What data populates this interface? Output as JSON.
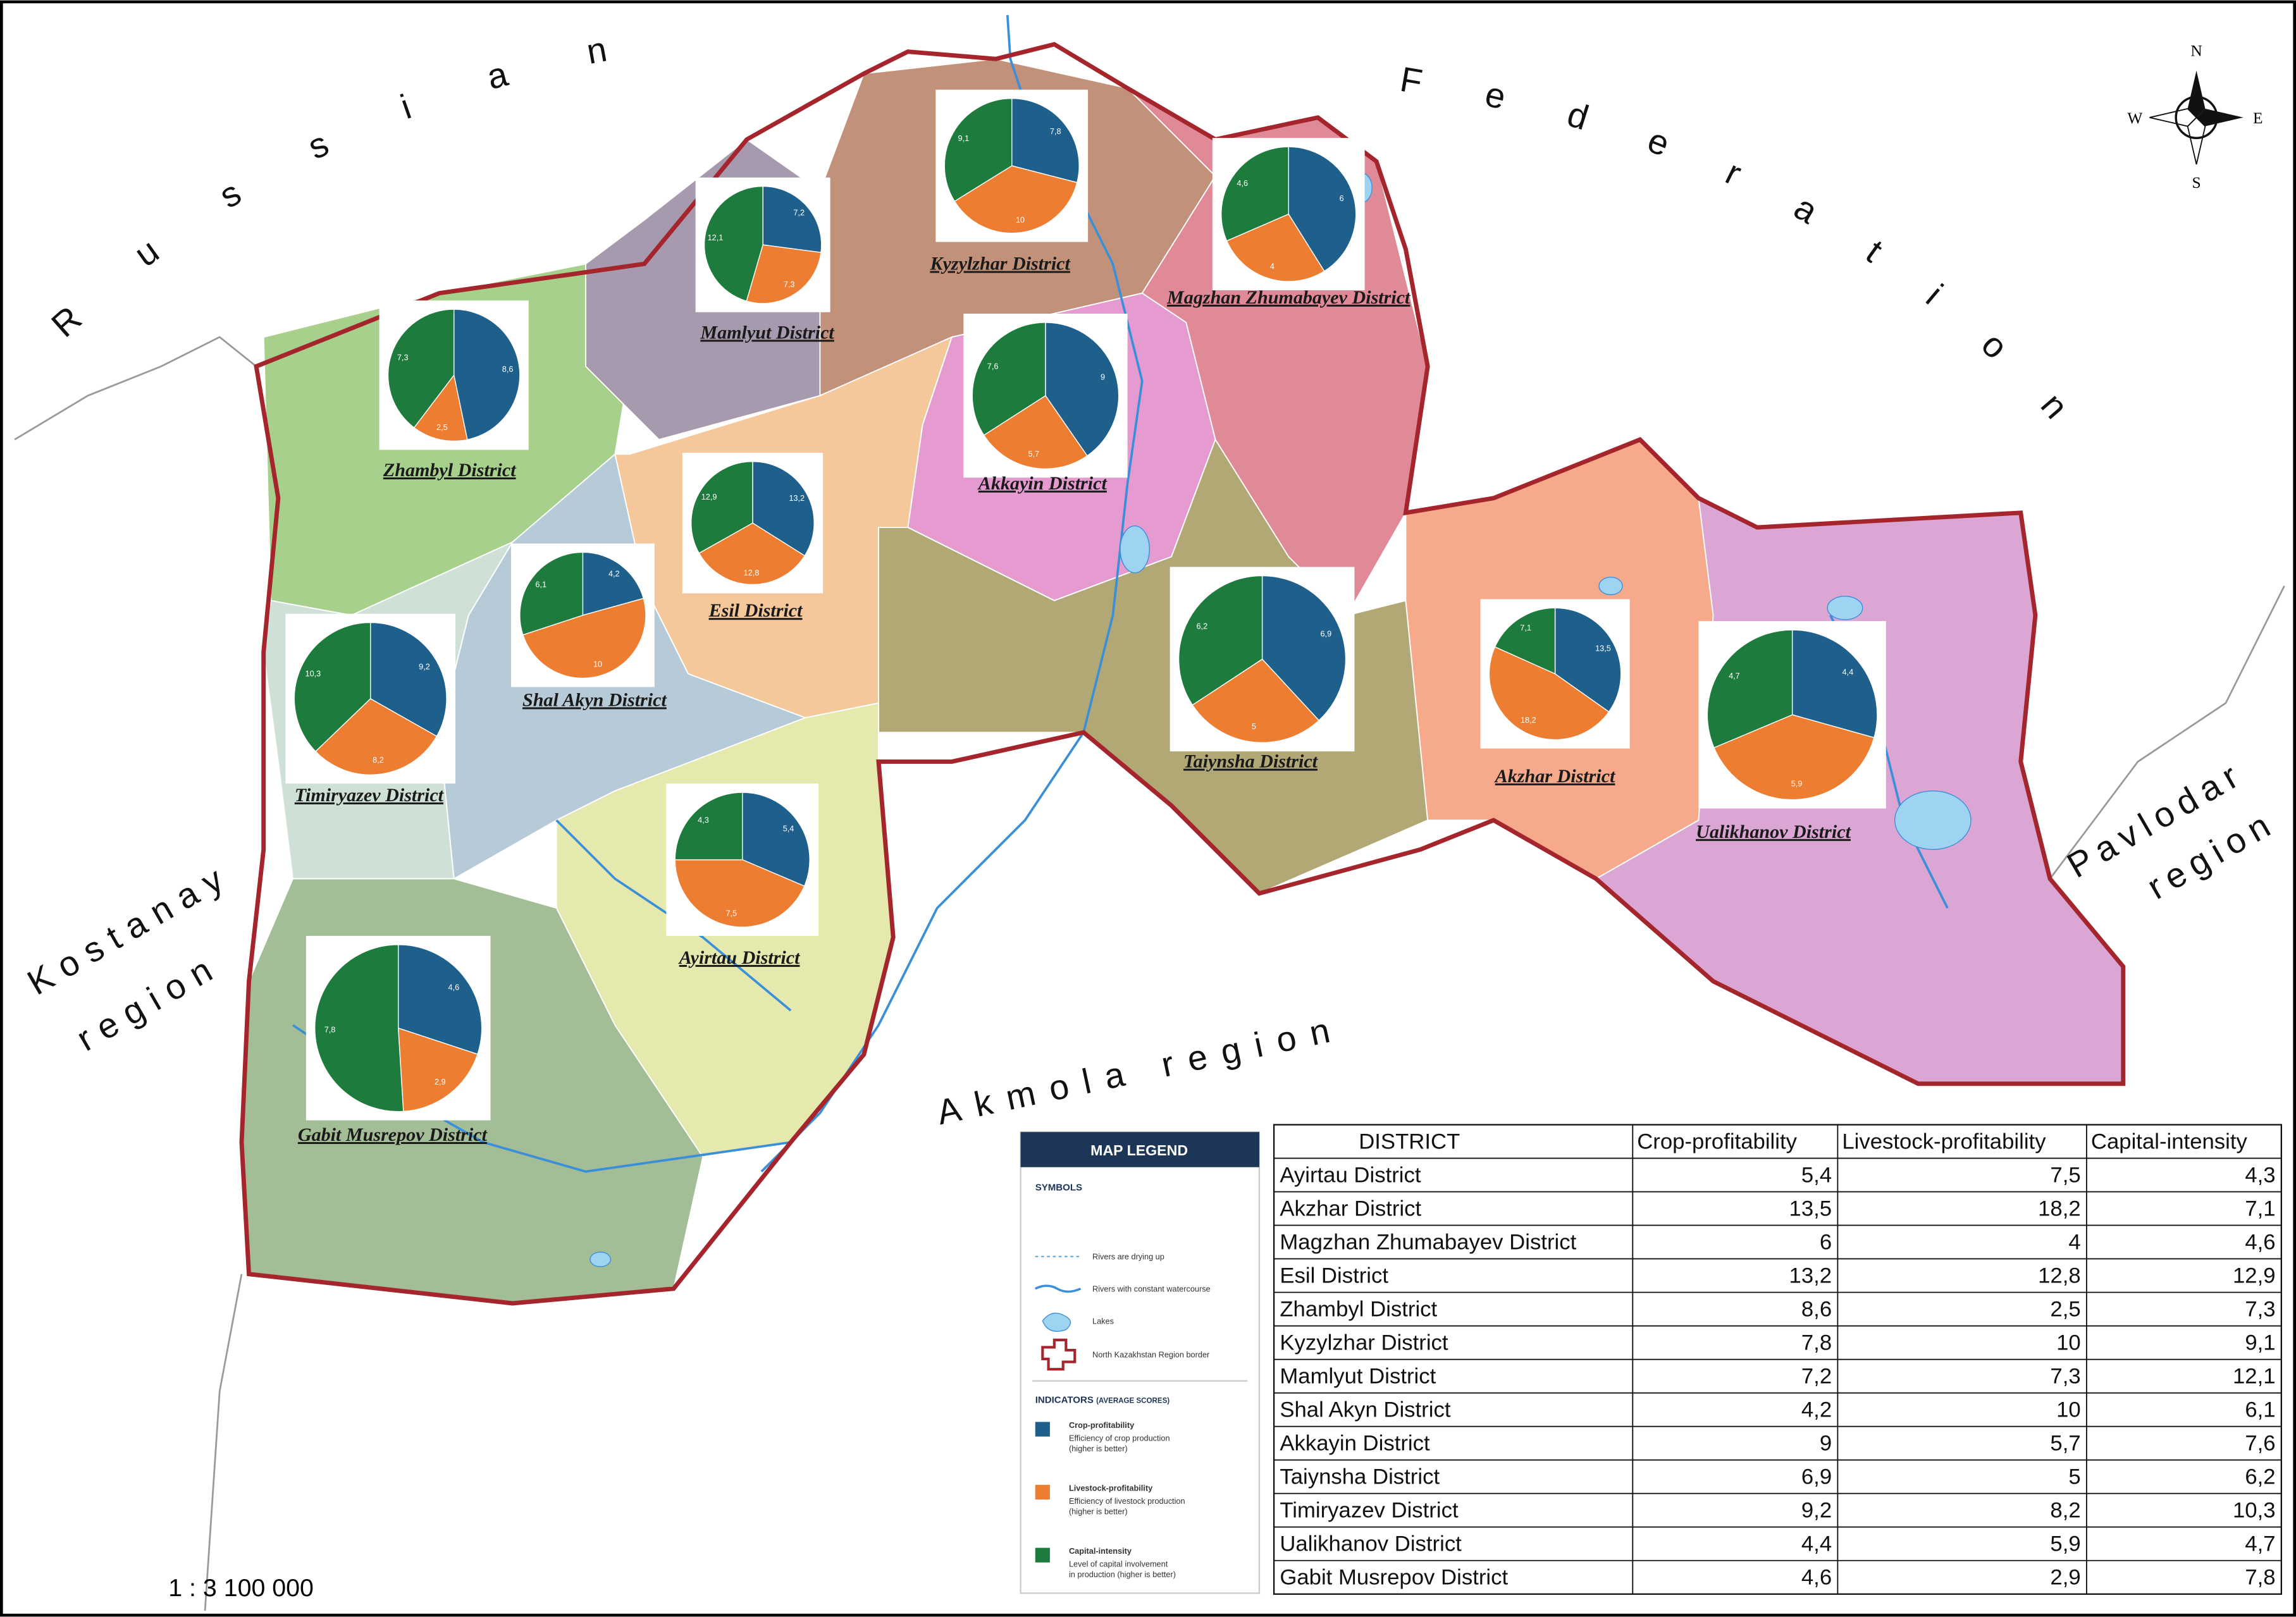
{
  "neighbors": {
    "russian": "Russian",
    "federation": "Federation",
    "kostanay": [
      "Kostanay",
      "region"
    ],
    "akmola": "Akmola region",
    "pavlodar": [
      "Pavlodar",
      "region"
    ]
  },
  "compass": {
    "n": "N",
    "s": "S",
    "w": "W",
    "e": "E"
  },
  "colors": [
    "#1f5f8b",
    "#ed7d31",
    "#1e7b3e"
  ],
  "pies": [
    {
      "name": "Kyzylzhar District",
      "values": [
        7.8,
        10,
        9.1
      ],
      "value_labels": [
        "7,8",
        "10",
        "9,1"
      ]
    },
    {
      "name": "Mamlyut District",
      "values": [
        7.2,
        7.3,
        12.1
      ],
      "value_labels": [
        "7,2",
        "7,3",
        "12,1"
      ]
    },
    {
      "name": "Magzhan Zhumabayev District",
      "values": [
        6,
        4,
        4.6
      ],
      "value_labels": [
        "6",
        "4",
        "4,6"
      ]
    },
    {
      "name": "Zhambyl District",
      "values": [
        8.6,
        2.5,
        7.3
      ],
      "value_labels": [
        "8,6",
        "2,5",
        "7,3"
      ]
    },
    {
      "name": "Akkayin District",
      "values": [
        9,
        5.7,
        7.6
      ],
      "value_labels": [
        "9",
        "5,7",
        "7,6"
      ]
    },
    {
      "name": "Esil District",
      "values": [
        13.2,
        12.8,
        12.9
      ],
      "value_labels": [
        "13,2",
        "12,8",
        "12,9"
      ]
    },
    {
      "name": "Shal Akyn District",
      "values": [
        4.2,
        10,
        6.1
      ],
      "value_labels": [
        "4,2",
        "10",
        "6,1"
      ]
    },
    {
      "name": "Taiynsha District",
      "values": [
        6.9,
        5,
        6.2
      ],
      "value_labels": [
        "6,9",
        "5",
        "6,2"
      ]
    },
    {
      "name": "Akzhar District",
      "values": [
        13.5,
        18.2,
        7.1
      ],
      "value_labels": [
        "13,5",
        "18,2",
        "7,1"
      ]
    },
    {
      "name": "Timiryazev District",
      "values": [
        9.2,
        8.2,
        10.3
      ],
      "value_labels": [
        "9,2",
        "8,2",
        "10,3"
      ]
    },
    {
      "name": "Ualikhanov District",
      "values": [
        4.4,
        5.9,
        4.7
      ],
      "value_labels": [
        "4,4",
        "5,9",
        "4,7"
      ]
    },
    {
      "name": "Ayirtau District",
      "values": [
        5.4,
        7.5,
        4.3
      ],
      "value_labels": [
        "5,4",
        "7,5",
        "4,3"
      ]
    },
    {
      "name": "Gabit Musrepov District",
      "values": [
        4.6,
        2.9,
        7.8
      ],
      "value_labels": [
        "4,6",
        "2,9",
        "7,8"
      ]
    }
  ],
  "legend": {
    "title": "MAP LEGEND",
    "symbols_title": "SYMBOLS",
    "symbols": [
      "Rivers are drying up",
      "Rivers with constant watercourse",
      "Lakes",
      "North Kazakhstan Region border"
    ],
    "indicators_title": "INDICATORS",
    "indicators_note": "(AVERAGE SCORES)",
    "indicators": [
      {
        "title": "Crop-profitability",
        "desc": [
          "Efficiency of crop production",
          "(higher is better)"
        ]
      },
      {
        "title": "Livestock-profitability",
        "desc": [
          "Efficiency of livestock production",
          "(higher is better)"
        ]
      },
      {
        "title": "Capital-intensity",
        "desc": [
          "Level of capital involvement",
          "in production (higher is better)"
        ]
      }
    ]
  },
  "table": {
    "header": [
      "DISTRICT",
      "Crop-profitability",
      "Livestock-profitability",
      "Capital-intensity"
    ],
    "rows": [
      [
        "Ayirtau District",
        "5,4",
        "7,5",
        "4,3"
      ],
      [
        "Akzhar District",
        "13,5",
        "18,2",
        "7,1"
      ],
      [
        "Magzhan Zhumabayev District",
        "6",
        "4",
        "4,6"
      ],
      [
        "Esil District",
        "13,2",
        "12,8",
        "12,9"
      ],
      [
        "Zhambyl District",
        "8,6",
        "2,5",
        "7,3"
      ],
      [
        "Kyzylzhar District",
        "7,8",
        "10",
        "9,1"
      ],
      [
        "Mamlyut District",
        "7,2",
        "7,3",
        "12,1"
      ],
      [
        "Shal Akyn District",
        "4,2",
        "10",
        "6,1"
      ],
      [
        "Akkayin District",
        "9",
        "5,7",
        "7,6"
      ],
      [
        "Taiynsha District",
        "6,9",
        "5",
        "6,2"
      ],
      [
        "Timiryazev District",
        "9,2",
        "8,2",
        "10,3"
      ],
      [
        "Ualikhanov District",
        "4,4",
        "5,9",
        "4,7"
      ],
      [
        "Gabit Musrepov District",
        "4,6",
        "2,9",
        "7,8"
      ]
    ]
  },
  "scale": "1 : 3 100 000"
}
